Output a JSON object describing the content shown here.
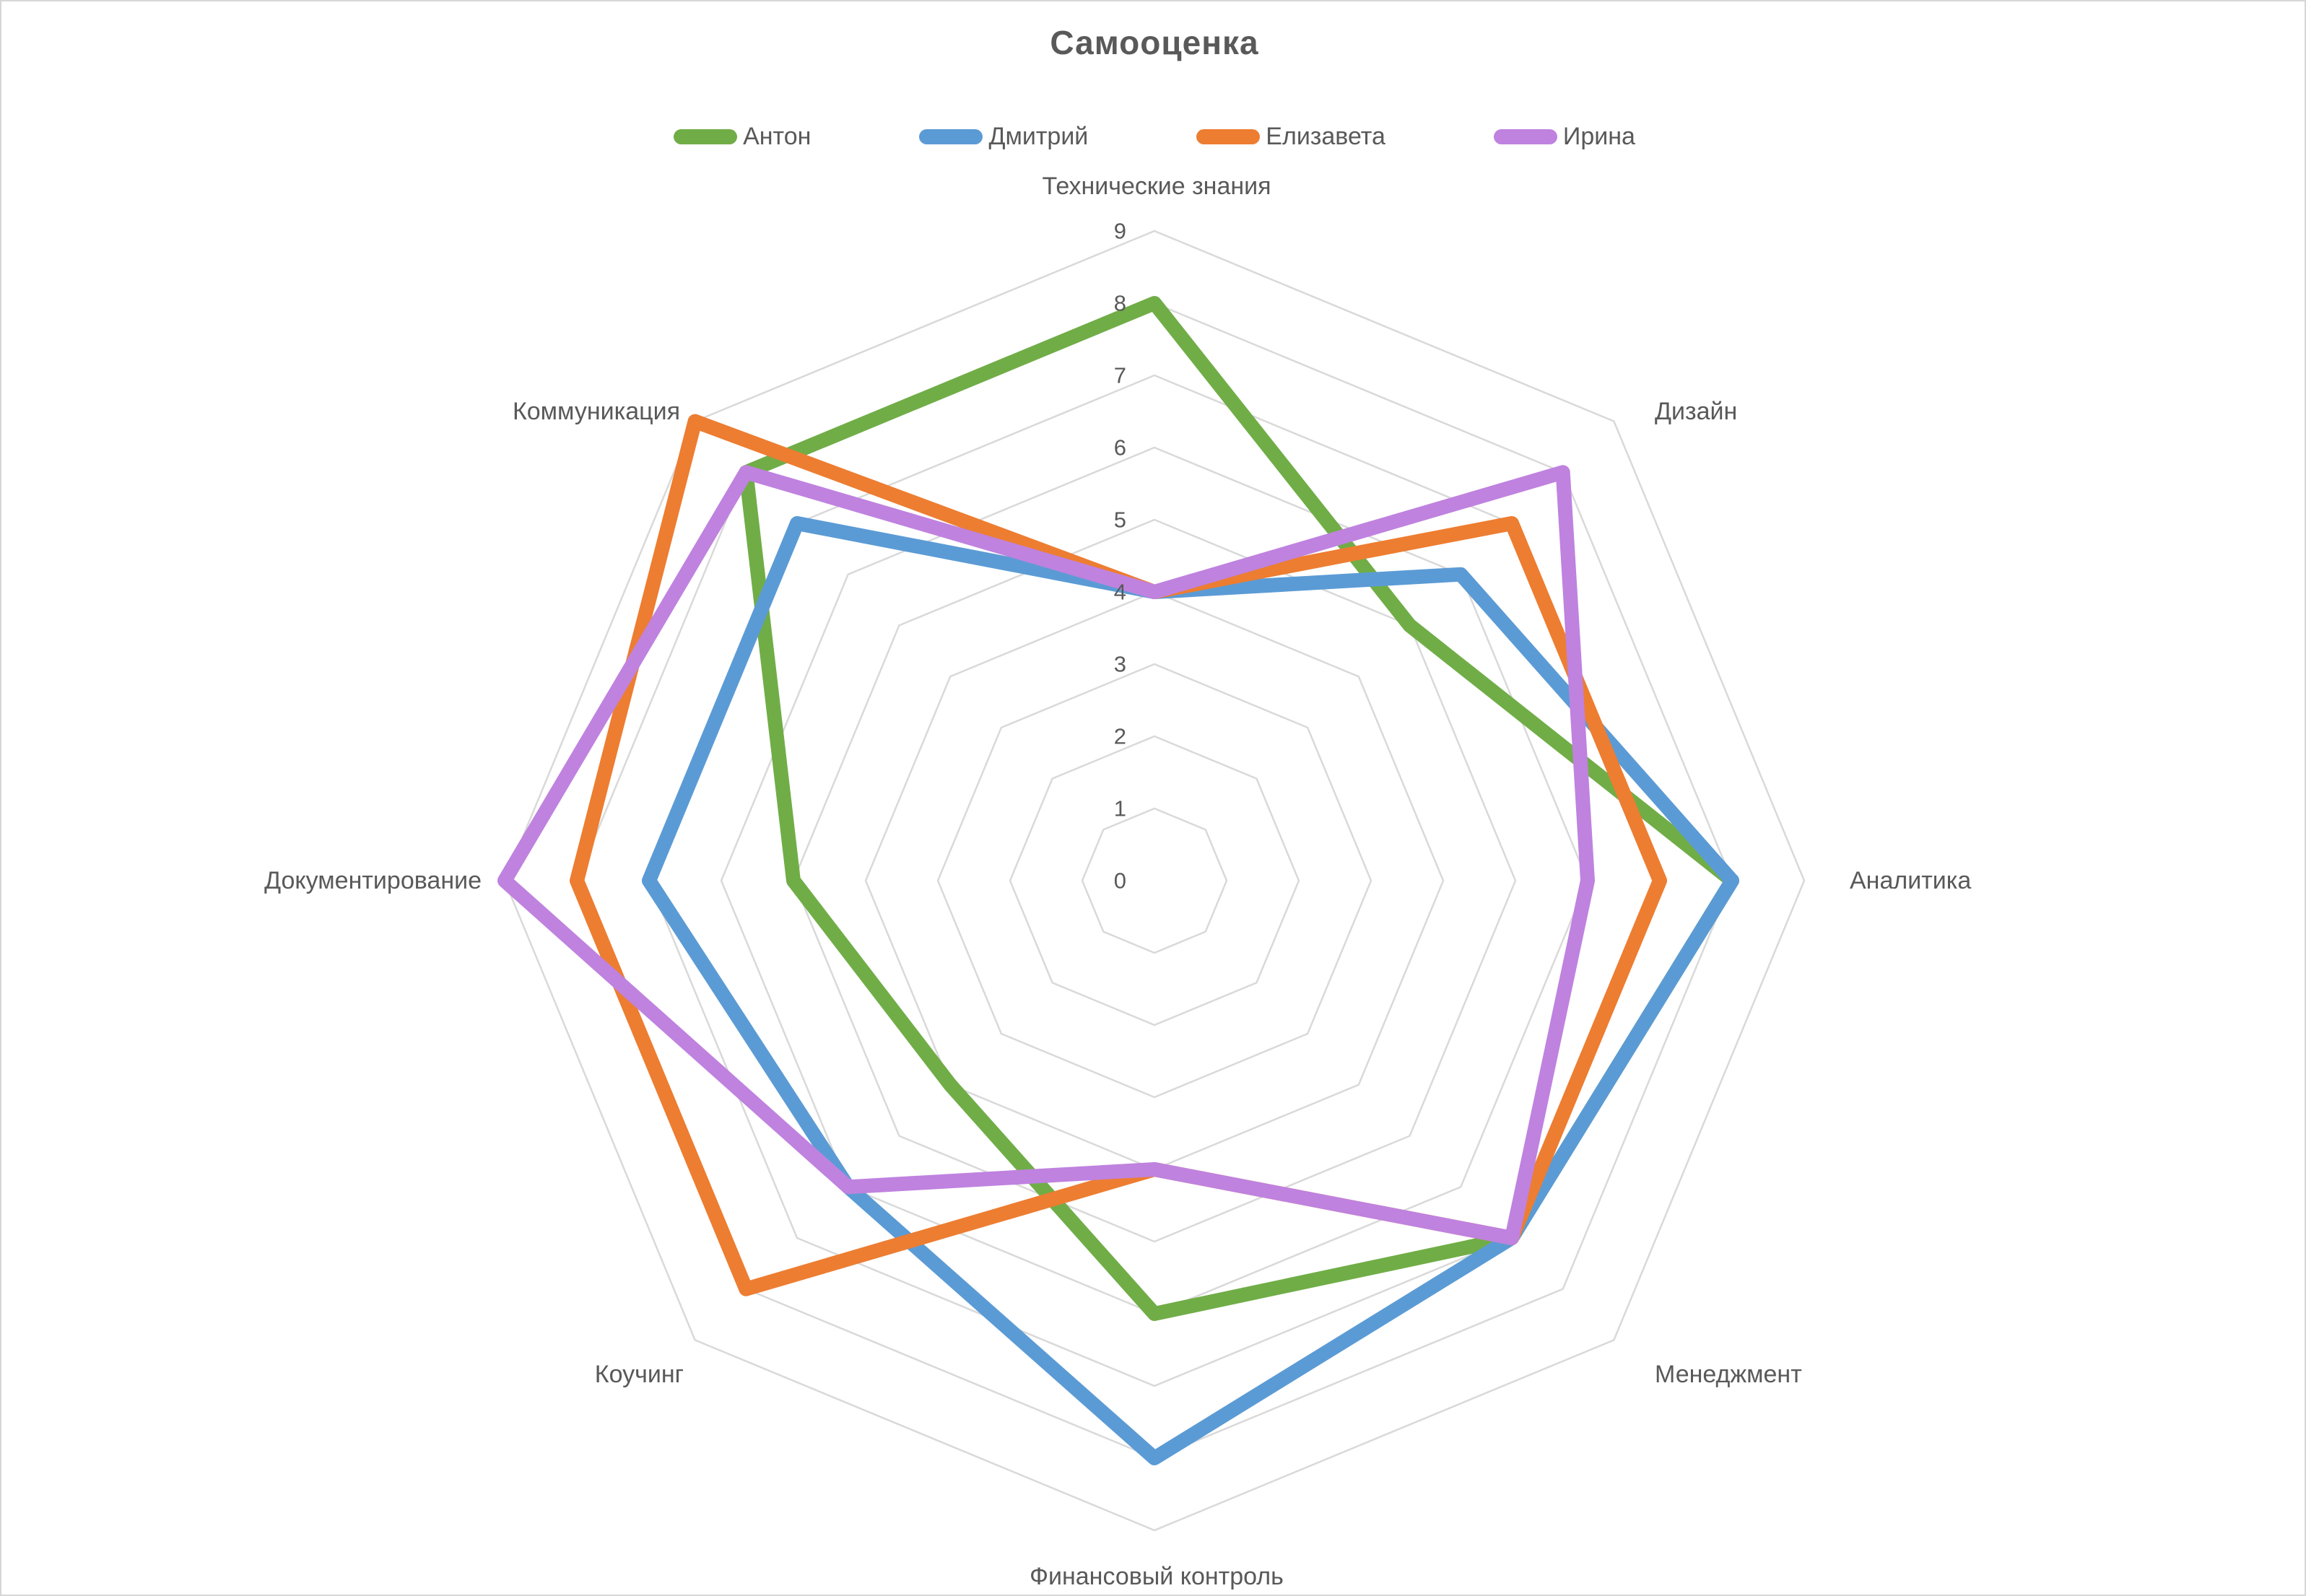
{
  "title": "Самооценка",
  "legend": [
    {
      "label": "Антон",
      "color": "#70ad47"
    },
    {
      "label": "Дмитрий",
      "color": "#5b9bd5"
    },
    {
      "label": "Елизавета",
      "color": "#ed7d31"
    },
    {
      "label": "Ирина",
      "color": "#bf82df"
    }
  ],
  "axis_ticks": [
    "0",
    "1",
    "2",
    "3",
    "4",
    "5",
    "6",
    "7",
    "8",
    "9"
  ],
  "chart_data": {
    "type": "radar",
    "title": "Самооценка",
    "categories": [
      "Технические знания",
      "Дизайн",
      "Аналитика",
      "Менеджмент",
      "Финансовый контроль",
      "Коучинг",
      "Документирование",
      "Коммуникация"
    ],
    "axis_range": [
      0,
      9
    ],
    "tick_step": 1,
    "grid": true,
    "gridline_color": "#d9d9d9",
    "tick_label_color": "#595959",
    "category_label_color": "#595959",
    "legend_position": "top",
    "series": [
      {
        "name": "Антон",
        "color": "#70ad47",
        "values": [
          8,
          5,
          8,
          7,
          6,
          4,
          5,
          8
        ]
      },
      {
        "name": "Дмитрий",
        "color": "#5b9bd5",
        "values": [
          4,
          6,
          8,
          7,
          8,
          6,
          7,
          7
        ]
      },
      {
        "name": "Елизавета",
        "color": "#ed7d31",
        "values": [
          4,
          7,
          7,
          7,
          4,
          8,
          8,
          9
        ]
      },
      {
        "name": "Ирина",
        "color": "#bf82df",
        "values": [
          4,
          8,
          6,
          7,
          4,
          6,
          9,
          8
        ]
      }
    ]
  }
}
